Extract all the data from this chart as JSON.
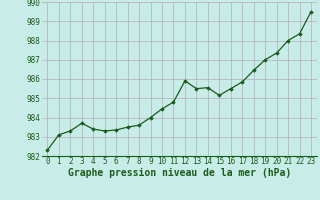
{
  "x": [
    0,
    1,
    2,
    3,
    4,
    5,
    6,
    7,
    8,
    9,
    10,
    11,
    12,
    13,
    14,
    15,
    16,
    17,
    18,
    19,
    20,
    21,
    22,
    23
  ],
  "y": [
    982.3,
    983.1,
    983.3,
    983.7,
    983.4,
    983.3,
    983.35,
    983.5,
    983.6,
    984.0,
    984.45,
    984.8,
    985.9,
    985.5,
    985.55,
    985.15,
    985.5,
    985.85,
    986.45,
    987.0,
    987.35,
    988.0,
    988.35,
    989.5
  ],
  "ylim": [
    982,
    990
  ],
  "yticks": [
    982,
    983,
    984,
    985,
    986,
    987,
    988,
    989,
    990
  ],
  "xticks": [
    0,
    1,
    2,
    3,
    4,
    5,
    6,
    7,
    8,
    9,
    10,
    11,
    12,
    13,
    14,
    15,
    16,
    17,
    18,
    19,
    20,
    21,
    22,
    23
  ],
  "line_color": "#1a5c1a",
  "marker": "D",
  "marker_size": 1.8,
  "bg_color": "#c8ece8",
  "grid_color": "#b8aab8",
  "xlabel": "Graphe pression niveau de la mer (hPa)",
  "xlabel_fontsize": 7,
  "tick_fontsize": 5.5,
  "line_width": 0.9
}
